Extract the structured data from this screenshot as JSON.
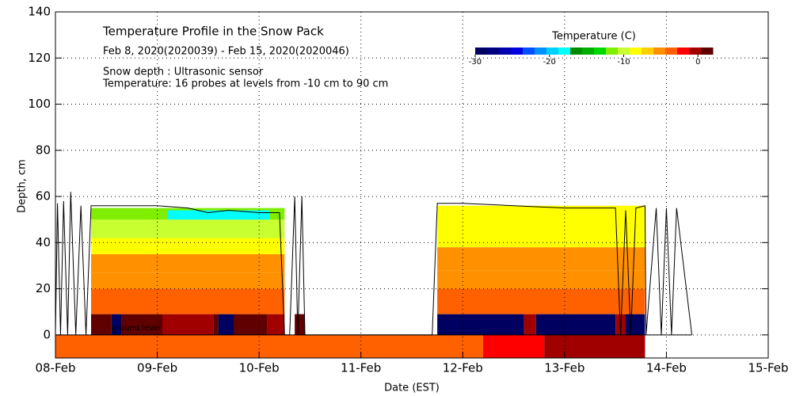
{
  "chart_data": {
    "type": "heatmap",
    "title": "Temperature Profile in the Snow Pack",
    "subtitle": "Feb  8, 2020(2020039) - Feb 15, 2020(2020046)",
    "notes": [
      "Snow depth : Ultrasonic sensor",
      "Temperature: 16 probes at levels from -10 cm to 90 cm"
    ],
    "annotation": {
      "text": "ground level",
      "x": 0.55,
      "y": 3
    },
    "xlabel": "Date (EST)",
    "ylabel": "Depth, cm",
    "xlim": [
      0,
      7
    ],
    "xticks": [
      {
        "value": 0,
        "label": "08-Feb"
      },
      {
        "value": 1,
        "label": "09-Feb"
      },
      {
        "value": 2,
        "label": "10-Feb"
      },
      {
        "value": 3,
        "label": "11-Feb"
      },
      {
        "value": 4,
        "label": "12-Feb"
      },
      {
        "value": 5,
        "label": "13-Feb"
      },
      {
        "value": 6,
        "label": "14-Feb"
      },
      {
        "value": 7,
        "label": "15-Feb"
      }
    ],
    "ylim": [
      -10,
      140
    ],
    "yticks": [
      0,
      20,
      40,
      60,
      80,
      100,
      120,
      140
    ],
    "grid": true,
    "colorbar": {
      "label": "Temperature (C)",
      "lim": [
        -30,
        2
      ],
      "ticks": [
        -30,
        -20,
        -10,
        0
      ],
      "colors": [
        "#000060",
        "#000080",
        "#0000b0",
        "#0000e0",
        "#0050ff",
        "#0090ff",
        "#00d0ff",
        "#00ffff",
        "#008c00",
        "#00b000",
        "#00d800",
        "#80ee00",
        "#c8ff30",
        "#ffff00",
        "#ffd000",
        "#ff9000",
        "#ff6000",
        "#ff0000",
        "#a00000",
        "#600000"
      ]
    },
    "cells": [
      {
        "x": [
          0,
          4.2
        ],
        "y": [
          -10,
          0
        ],
        "value": -3
      },
      {
        "x": [
          4.2,
          4.8
        ],
        "y": [
          -10,
          0
        ],
        "value": -2
      },
      {
        "x": [
          4.8,
          5.79
        ],
        "y": [
          -10,
          0
        ],
        "value": -1
      },
      {
        "x": [
          0.35,
          0.55
        ],
        "y": [
          0,
          9
        ],
        "value": 1
      },
      {
        "x": [
          0.55,
          0.65
        ],
        "y": [
          0,
          9
        ],
        "value": -29
      },
      {
        "x": [
          0.65,
          1.05
        ],
        "y": [
          0,
          9
        ],
        "value": 1
      },
      {
        "x": [
          1.05,
          1.55
        ],
        "y": [
          0,
          9
        ],
        "value": -1
      },
      {
        "x": [
          1.55,
          1.6
        ],
        "y": [
          0,
          9
        ],
        "value": 1
      },
      {
        "x": [
          1.6,
          1.75
        ],
        "y": [
          0,
          9
        ],
        "value": -29
      },
      {
        "x": [
          1.75,
          2.08
        ],
        "y": [
          0,
          9
        ],
        "value": 1
      },
      {
        "x": [
          2.08,
          2.25
        ],
        "y": [
          0,
          9
        ],
        "value": -1
      },
      {
        "x": [
          2.35,
          2.45
        ],
        "y": [
          0,
          9
        ],
        "value": 1
      },
      {
        "x": [
          0.35,
          2.25
        ],
        "y": [
          9,
          20
        ],
        "value": -3
      },
      {
        "x": [
          0.35,
          2.25
        ],
        "y": [
          20,
          27
        ],
        "value": -5
      },
      {
        "x": [
          0.35,
          2.25
        ],
        "y": [
          27,
          35
        ],
        "value": -6
      },
      {
        "x": [
          0.35,
          2.25
        ],
        "y": [
          35,
          42
        ],
        "value": -8
      },
      {
        "x": [
          0.35,
          2.25
        ],
        "y": [
          42,
          50
        ],
        "value": -10
      },
      {
        "x": [
          0.35,
          2.25
        ],
        "y": [
          50,
          55
        ],
        "value": -12
      },
      {
        "x": [
          1.1,
          2.1
        ],
        "y": [
          50,
          54
        ],
        "value": -18
      },
      {
        "x": [
          3.75,
          4.6
        ],
        "y": [
          0,
          9
        ],
        "value": -29
      },
      {
        "x": [
          4.6,
          4.72
        ],
        "y": [
          0,
          9
        ],
        "value": -1
      },
      {
        "x": [
          4.72,
          5.5
        ],
        "y": [
          0,
          9
        ],
        "value": -29
      },
      {
        "x": [
          5.5,
          5.6
        ],
        "y": [
          0,
          9
        ],
        "value": -1
      },
      {
        "x": [
          5.6,
          5.79
        ],
        "y": [
          0,
          9
        ],
        "value": -29
      },
      {
        "x": [
          3.75,
          5.79
        ],
        "y": [
          9,
          20
        ],
        "value": -3
      },
      {
        "x": [
          3.75,
          5.79
        ],
        "y": [
          20,
          28
        ],
        "value": -5
      },
      {
        "x": [
          3.75,
          5.79
        ],
        "y": [
          28,
          38
        ],
        "value": -6
      },
      {
        "x": [
          3.75,
          5.79
        ],
        "y": [
          38,
          56
        ],
        "value": -8
      }
    ],
    "depth": {
      "name": "Snow depth",
      "color": "#000000",
      "x": [
        0.0,
        0.02,
        0.05,
        0.08,
        0.12,
        0.15,
        0.2,
        0.25,
        0.3,
        0.35,
        0.5,
        0.8,
        1.0,
        1.3,
        1.5,
        1.7,
        2.0,
        2.2,
        2.25,
        2.3,
        2.35,
        2.38,
        2.42,
        2.45,
        2.5,
        3.7,
        3.75,
        4.0,
        4.5,
        5.0,
        5.5,
        5.55,
        5.6,
        5.65,
        5.7,
        5.79,
        5.8,
        5.9,
        5.95,
        6.0,
        6.05,
        6.1,
        6.25
      ],
      "values": [
        0,
        57,
        0,
        58,
        0,
        62,
        0,
        56,
        0,
        56,
        56,
        56,
        56,
        55,
        53,
        54,
        53,
        53,
        0,
        0,
        60,
        0,
        60,
        0,
        0,
        0,
        57,
        57,
        56,
        55,
        55,
        0,
        54,
        0,
        55,
        56,
        0,
        55,
        0,
        55,
        0,
        55,
        0
      ]
    }
  }
}
